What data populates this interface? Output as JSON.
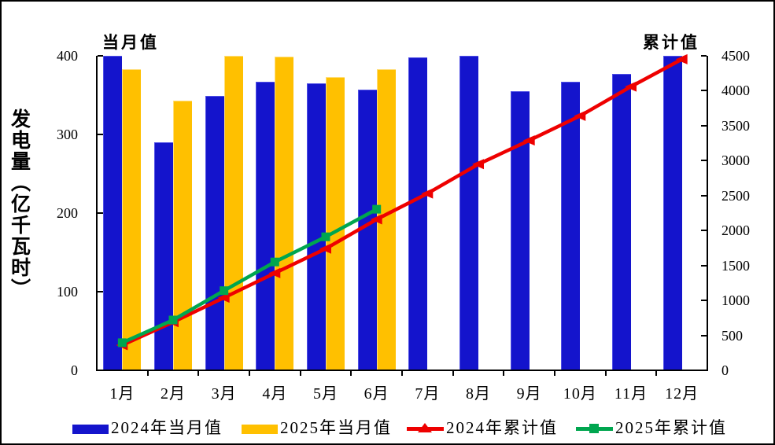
{
  "chart": {
    "y_axis_title": "发电量（亿千瓦时）",
    "left_axis_top_label": "当月值",
    "right_axis_top_label": "累计值"
  },
  "chart_data": {
    "type": "combo-bar-line",
    "categories": [
      "1月",
      "2月",
      "3月",
      "4月",
      "5月",
      "6月",
      "7月",
      "8月",
      "9月",
      "10月",
      "11月",
      "12月"
    ],
    "series": [
      {
        "name": "2024年当月值",
        "type": "bar",
        "axis": "left",
        "color": "#1414CC",
        "marker": "none",
        "values": [
          400,
          290,
          349,
          367,
          365,
          357,
          398,
          400,
          355,
          367,
          377,
          400
        ]
      },
      {
        "name": "2025年当月值",
        "type": "bar",
        "axis": "left",
        "color": "#FFC000",
        "marker": "none",
        "values": [
          383,
          343,
          400,
          399,
          373,
          383
        ]
      },
      {
        "name": "2024年累计值",
        "type": "line",
        "axis": "right",
        "color": "#EE0000",
        "marker": "triangle",
        "values": [
          360,
          690,
          1040,
          1390,
          1740,
          2160,
          2530,
          2950,
          3290,
          3640,
          4060,
          4450
        ]
      },
      {
        "name": "2025年累计值",
        "type": "line",
        "axis": "right",
        "color": "#00A64F",
        "marker": "square",
        "values": [
          395,
          720,
          1140,
          1550,
          1910,
          2305
        ]
      }
    ],
    "left_axis": {
      "label": "当月值",
      "min": 0,
      "max": 400,
      "step": 100,
      "ticks": [
        400,
        300,
        200,
        100,
        0
      ]
    },
    "right_axis": {
      "label": "累计值",
      "min": 0,
      "max": 4500,
      "step": 500,
      "ticks": [
        4500,
        4000,
        3500,
        3000,
        2500,
        2000,
        1500,
        1000,
        500,
        0
      ]
    },
    "grid": false,
    "legend_position": "bottom",
    "background_color": "#FFFFFF",
    "border_color": "#000000"
  }
}
